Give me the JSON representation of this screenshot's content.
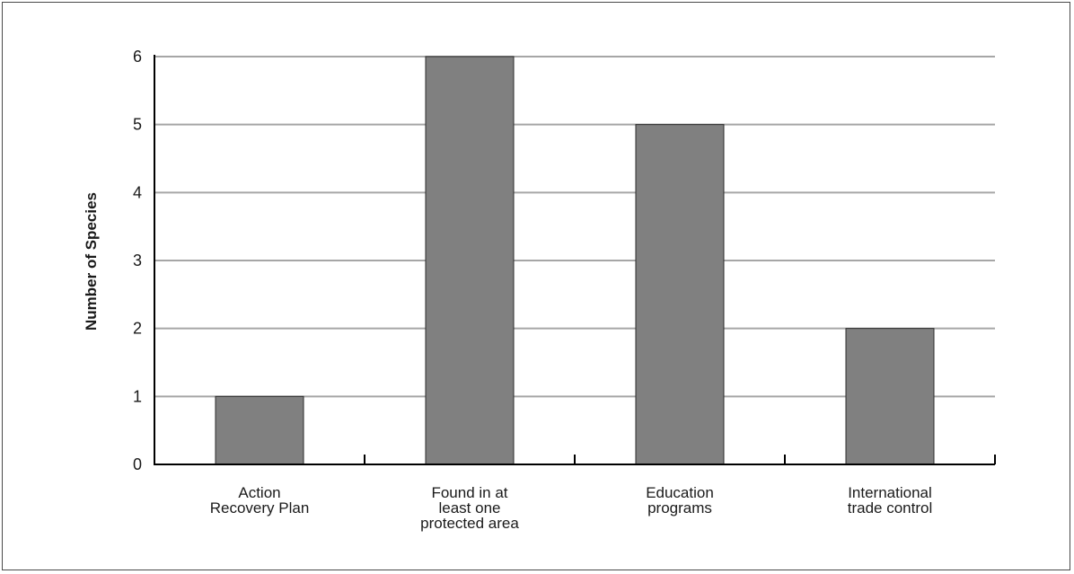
{
  "chart_data": {
    "type": "bar",
    "categories": [
      [
        "Action",
        "Recovery Plan"
      ],
      [
        "Found in at",
        "least one",
        "protected area"
      ],
      [
        "Education",
        "programs"
      ],
      [
        "International",
        "trade control"
      ]
    ],
    "values": [
      1,
      6,
      5,
      2
    ],
    "ylabel": "Number of Species",
    "xlabel": "",
    "ylim": [
      0,
      6
    ],
    "yticks": [
      0,
      1,
      2,
      3,
      4,
      5,
      6
    ],
    "grid": true,
    "colors": {
      "bar_fill": "#808080",
      "bar_stroke": "#2b2b2b",
      "grid": "#a6a6a6",
      "axis": "#000000"
    }
  }
}
